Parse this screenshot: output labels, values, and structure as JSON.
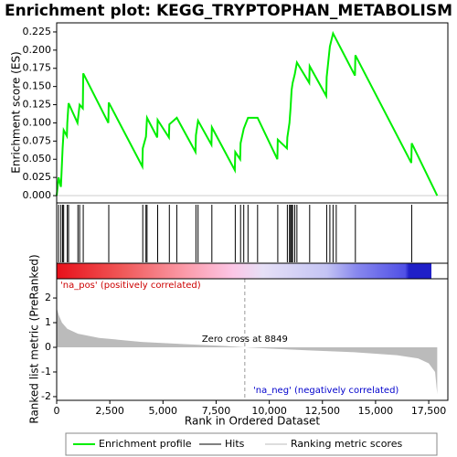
{
  "chart_data": [
    {
      "type": "line",
      "title": "Enrichment plot: KEGG_TRYPTOPHAN_METABOLISM",
      "ylabel": "Enrichment score (ES)",
      "color": "#00ee00",
      "x": [
        0,
        90,
        200,
        280,
        330,
        480,
        500,
        560,
        980,
        1000,
        1080,
        1230,
        1250,
        2430,
        2450,
        4030,
        4050,
        4200,
        4250,
        4730,
        4750,
        5280,
        5300,
        5650,
        6530,
        6550,
        6650,
        7280,
        7300,
        8380,
        8400,
        8630,
        8650,
        8800,
        9000,
        9450,
        10380,
        10400,
        10830,
        10850,
        10950,
        11000,
        11050,
        11100,
        11200,
        11300,
        11880,
        11900,
        12680,
        12700,
        12850,
        13000,
        14030,
        14050,
        16680,
        16700,
        17900
      ],
      "values": [
        0,
        0.025,
        0.012,
        0.065,
        0.09,
        0.082,
        0.1,
        0.127,
        0.1,
        0.105,
        0.125,
        0.12,
        0.168,
        0.1,
        0.128,
        0.04,
        0.065,
        0.081,
        0.107,
        0.08,
        0.104,
        0.08,
        0.098,
        0.107,
        0.06,
        0.083,
        0.103,
        0.07,
        0.094,
        0.035,
        0.06,
        0.05,
        0.072,
        0.092,
        0.107,
        0.107,
        0.05,
        0.077,
        0.065,
        0.08,
        0.1,
        0.12,
        0.145,
        0.155,
        0.167,
        0.183,
        0.155,
        0.178,
        0.137,
        0.163,
        0.205,
        0.223,
        0.165,
        0.193,
        0.045,
        0.072,
        0
      ],
      "xlim": [
        0,
        18400
      ],
      "ylim": [
        -0.01,
        0.2375
      ],
      "yticks": [
        {
          "value": 0,
          "label": "0.000"
        },
        {
          "value": 0.025,
          "label": "0.025"
        },
        {
          "value": 0.05,
          "label": "0.050"
        },
        {
          "value": 0.075,
          "label": "0.075"
        },
        {
          "value": 0.1,
          "label": "0.100"
        },
        {
          "value": 0.125,
          "label": "0.125"
        },
        {
          "value": 0.15,
          "label": "0.150"
        },
        {
          "value": 0.175,
          "label": "0.175"
        },
        {
          "value": 0.2,
          "label": "0.200"
        },
        {
          "value": 0.225,
          "label": "0.225"
        }
      ],
      "legend": [
        "Enrichment profile",
        "Hits",
        "Ranking metric scores"
      ]
    },
    {
      "type": "hits",
      "color": "#000000",
      "x": [
        90,
        200,
        280,
        330,
        500,
        560,
        1000,
        1080,
        1250,
        2450,
        4050,
        4200,
        4250,
        4750,
        5300,
        5650,
        6550,
        6650,
        7300,
        8400,
        8650,
        8800,
        9000,
        9450,
        10400,
        10850,
        10950,
        11000,
        11050,
        11100,
        11200,
        11300,
        11900,
        12700,
        12850,
        13000,
        13150,
        14050,
        16700
      ]
    },
    {
      "type": "area",
      "ylabel": "Ranked list metric (PreRanked)",
      "xlabel": "Rank in Ordered Dataset",
      "color": "#bbbbbb",
      "x": [
        0,
        100,
        250,
        500,
        1000,
        2000,
        4000,
        6000,
        8000,
        8849,
        10000,
        12000,
        14000,
        16000,
        17000,
        17500,
        17800,
        17900
      ],
      "values": [
        1.6,
        1.3,
        1.0,
        0.75,
        0.55,
        0.38,
        0.22,
        0.13,
        0.05,
        0,
        -0.05,
        -0.13,
        -0.2,
        -0.32,
        -0.45,
        -0.65,
        -1.0,
        -1.9
      ],
      "ylim": [
        -2.15,
        2.78
      ],
      "yticks": [
        -2,
        -1,
        0,
        1,
        2
      ],
      "xticks": [
        0,
        {
          "value": 2500,
          "label": "2,500"
        },
        {
          "value": 5000,
          "label": "5,000"
        },
        {
          "value": 7500,
          "label": "7,500"
        },
        {
          "value": 10000,
          "label": "10,000"
        },
        {
          "value": 12500,
          "label": "12,500"
        },
        {
          "value": 15000,
          "label": "15,000"
        },
        {
          "value": 17500,
          "label": "17,500"
        }
      ],
      "zero_cross": 8849,
      "annotations": [
        "'na_pos' (positively correlated)",
        "Zero cross at 8849",
        "'na_neg' (negatively correlated)"
      ]
    }
  ]
}
